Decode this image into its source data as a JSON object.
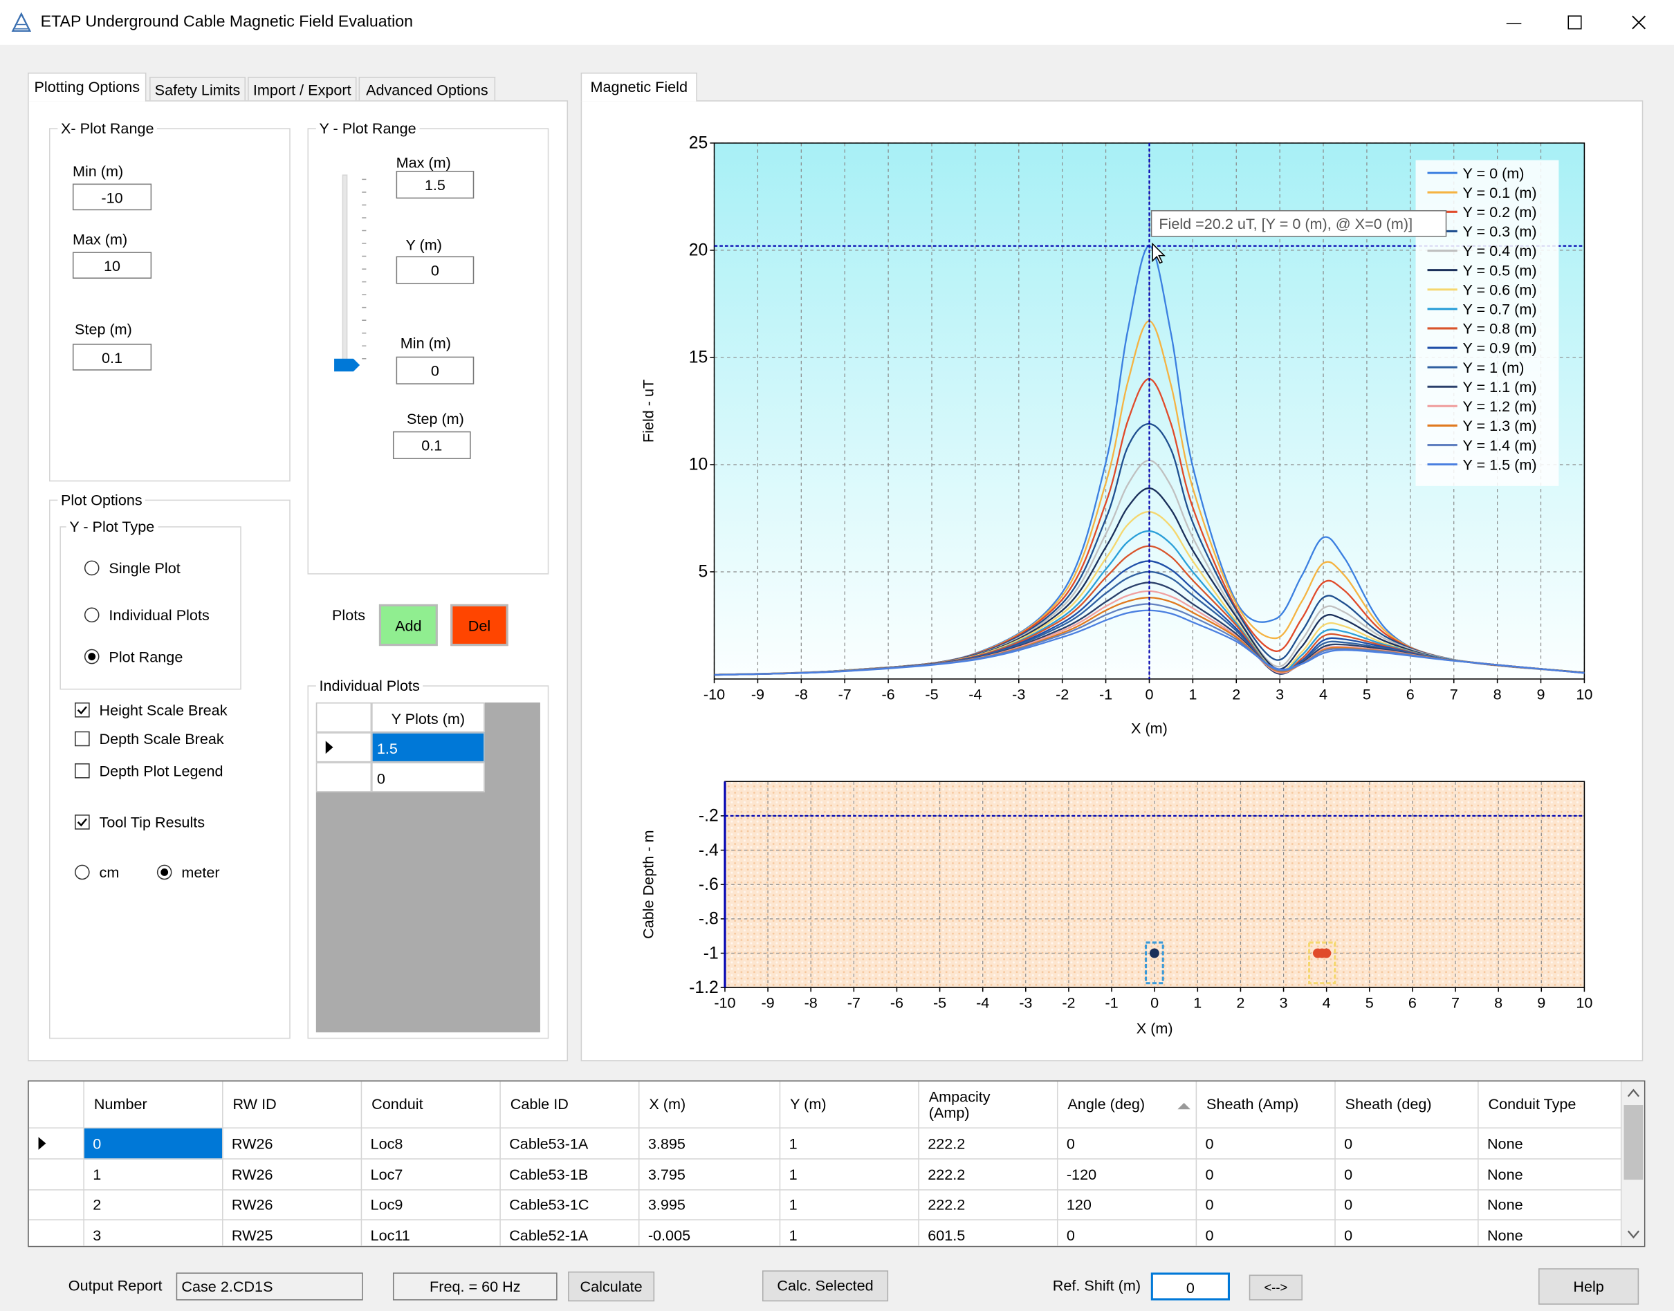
{
  "window": {
    "title": "ETAP Underground Cable Magnetic Field Evaluation"
  },
  "left_tabs": [
    "Plotting Options",
    "Safety Limits",
    "Import / Export",
    "Advanced Options"
  ],
  "x_plot_range": {
    "title": "X- Plot Range",
    "min_label": "Min (m)",
    "min": -10,
    "max_label": "Max (m)",
    "max": 10,
    "step_label": "Step (m)",
    "step": 0.1
  },
  "y_plot_range": {
    "title": "Y - Plot Range",
    "max_label": "Max (m)",
    "max": 1.5,
    "y_label": "Y (m)",
    "y": 0,
    "min_label": "Min (m)",
    "min": 0,
    "step_label": "Step (m)",
    "step": 0.1
  },
  "plot_options": {
    "title": "Plot Options",
    "y_plot_type": {
      "title": "Y - Plot Type",
      "options": [
        "Single Plot",
        "Individual Plots",
        "Plot Range"
      ],
      "selected": 2
    },
    "checkboxes": [
      {
        "label": "Height Scale Break",
        "checked": true
      },
      {
        "label": "Depth Scale Break",
        "checked": false
      },
      {
        "label": "Depth Plot Legend",
        "checked": false
      },
      {
        "label": "Tool Tip Results",
        "checked": true
      }
    ],
    "units": {
      "options": [
        "cm",
        "meter"
      ],
      "selected": 1
    }
  },
  "plots": {
    "label": "Plots",
    "add": "Add",
    "del": "Del"
  },
  "individual_plots": {
    "title": "Individual Plots",
    "header": "Y Plots (m)",
    "rows": [
      1.5,
      0
    ]
  },
  "right_tab": "Magnetic Field",
  "chart_data": [
    {
      "type": "line",
      "y_label": "Field - uT",
      "x_label": "X (m)",
      "x": [
        -10,
        -7,
        -4,
        -2,
        -1,
        -0.5,
        0,
        0.5,
        1,
        2,
        2.9,
        3.5,
        4,
        4.5,
        5.5,
        7,
        10
      ],
      "series": [
        {
          "name": "Y = 0 (m)",
          "color": "#3b7fe0",
          "values": [
            0.2,
            0.4,
            1.19,
            4.04,
            10.1,
            16.2,
            20.2,
            16.1,
            9.9,
            3.6,
            2.8,
            4.8,
            6.6,
            5.6,
            2.2,
            0.9,
            0.3
          ]
        },
        {
          "name": "Y = 0.1 (m)",
          "color": "#f5b342",
          "values": [
            0.2,
            0.4,
            1.17,
            3.88,
            9.14,
            13.8,
            16.7,
            13.7,
            8.9,
            3.5,
            1.9,
            3.6,
            5.4,
            4.8,
            2.1,
            0.9,
            0.3
          ]
        },
        {
          "name": "Y = 0.2 (m)",
          "color": "#e04a2a",
          "values": [
            0.2,
            0.4,
            1.16,
            3.71,
            8.21,
            12.0,
            14.0,
            11.9,
            8.0,
            3.3,
            1.3,
            2.8,
            4.5,
            4.1,
            2.0,
            0.9,
            0.3
          ]
        },
        {
          "name": "Y = 0.3 (m)",
          "color": "#1f4f8f",
          "values": [
            0.2,
            0.4,
            1.14,
            3.53,
            7.47,
            10.8,
            11.9,
            10.7,
            7.3,
            3.2,
            0.9,
            2.2,
            3.8,
            3.5,
            1.9,
            0.9,
            0.3
          ]
        },
        {
          "name": "Y = 0.4 (m)",
          "color": "#c0c0c0",
          "values": [
            0.2,
            0.4,
            1.11,
            3.37,
            6.76,
            9.05,
            10.2,
            9.0,
            6.6,
            3.0,
            0.6,
            1.8,
            3.3,
            3.1,
            1.8,
            0.9,
            0.3
          ]
        },
        {
          "name": "Y = 0.5 (m)",
          "color": "#1a2f5a",
          "values": [
            0.2,
            0.39,
            1.1,
            3.2,
            6.15,
            8.0,
            8.9,
            7.9,
            6.0,
            2.9,
            0.5,
            1.5,
            2.9,
            2.75,
            1.7,
            0.88,
            0.3
          ]
        },
        {
          "name": "Y = 0.6 (m)",
          "color": "#f5d76e",
          "values": [
            0.2,
            0.39,
            1.08,
            3.05,
            5.62,
            7.19,
            7.8,
            7.1,
            5.5,
            2.7,
            0.4,
            1.25,
            2.5,
            2.45,
            1.6,
            0.88,
            0.3
          ]
        },
        {
          "name": "Y = 0.7 (m)",
          "color": "#2a9fd8",
          "values": [
            0.19,
            0.38,
            1.05,
            2.89,
            5.12,
            6.39,
            6.9,
            6.3,
            5.0,
            2.6,
            0.35,
            1.1,
            2.2,
            2.2,
            1.55,
            0.88,
            0.29
          ]
        },
        {
          "name": "Y = 0.8 (m)",
          "color": "#d9542b",
          "values": [
            0.19,
            0.38,
            1.05,
            2.77,
            4.74,
            5.74,
            6.2,
            5.7,
            4.6,
            2.5,
            0.3,
            0.95,
            2.0,
            2.0,
            1.5,
            0.87,
            0.29
          ]
        },
        {
          "name": "Y = 0.9 (m)",
          "color": "#1f4fa8",
          "values": [
            0.19,
            0.38,
            1.02,
            2.62,
            4.33,
            5.15,
            5.5,
            5.1,
            4.2,
            2.35,
            0.3,
            0.85,
            1.8,
            1.85,
            1.45,
            0.87,
            0.29
          ]
        },
        {
          "name": "Y = 1 (m)",
          "color": "#3060a0",
          "values": [
            0.19,
            0.38,
            1.0,
            2.5,
            4.0,
            4.71,
            5.0,
            4.7,
            3.9,
            2.25,
            0.3,
            0.8,
            1.65,
            1.7,
            1.4,
            0.87,
            0.29
          ]
        },
        {
          "name": "Y = 1.1 (m)",
          "color": "#2a3f6a",
          "values": [
            0.19,
            0.37,
            0.97,
            2.35,
            3.6,
            4.23,
            4.5,
            4.2,
            3.5,
            2.1,
            0.3,
            0.75,
            1.5,
            1.6,
            1.35,
            0.86,
            0.29
          ]
        },
        {
          "name": "Y = 1.2 (m)",
          "color": "#f0a0a0",
          "values": [
            0.19,
            0.37,
            0.95,
            2.25,
            3.39,
            3.89,
            4.1,
            3.85,
            3.3,
            2.0,
            0.35,
            0.7,
            1.4,
            1.5,
            1.3,
            0.86,
            0.28
          ]
        },
        {
          "name": "Y = 1.3 (m)",
          "color": "#e07a20",
          "values": [
            0.19,
            0.37,
            0.94,
            2.15,
            3.2,
            3.62,
            3.8,
            3.6,
            3.1,
            1.95,
            0.4,
            0.7,
            1.35,
            1.45,
            1.27,
            0.86,
            0.28
          ]
        },
        {
          "name": "Y = 1.4 (m)",
          "color": "#6080c0",
          "values": [
            0.19,
            0.37,
            0.93,
            2.07,
            2.99,
            3.35,
            3.5,
            3.3,
            2.9,
            1.85,
            0.45,
            0.7,
            1.3,
            1.4,
            1.25,
            0.85,
            0.28
          ]
        },
        {
          "name": "Y = 1.5 (m)",
          "color": "#4a7fe0",
          "values": [
            0.19,
            0.36,
            0.9,
            1.95,
            2.74,
            3.08,
            3.2,
            3.05,
            2.65,
            1.75,
            0.5,
            0.7,
            1.2,
            1.35,
            1.2,
            0.85,
            0.28
          ]
        }
      ],
      "xlim": [
        -10,
        10
      ],
      "xticks": [
        -10,
        -9,
        -8,
        -7,
        -6,
        -5,
        -4,
        -3,
        -2,
        -1,
        0,
        1,
        2,
        3,
        4,
        5,
        6,
        7,
        8,
        9,
        10
      ],
      "ylim": [
        0,
        25
      ],
      "yticks": [
        5,
        10,
        15,
        20,
        25
      ],
      "grid": true,
      "legend": "top-right",
      "crosshair": {
        "x": 0,
        "y": 20.2
      },
      "tooltip": "Field =20.2 uT, [Y = 0 (m),  @ X=0 (m)]"
    },
    {
      "type": "scatter",
      "y_label": "Cable Depth - m",
      "x_label": "X (m)",
      "series": [
        {
          "color": "#1a2f5a",
          "x": [
            -0.005
          ],
          "values": [
            -1
          ]
        },
        {
          "color": "#e04a2a",
          "x": [
            3.795,
            3.895,
            3.995
          ],
          "values": [
            -1,
            -1,
            -1
          ]
        }
      ],
      "xlim": [
        -10,
        10
      ],
      "xticks": [
        -10,
        -9,
        -8,
        -7,
        -6,
        -5,
        -4,
        -3,
        -2,
        -1,
        0,
        1,
        2,
        3,
        4,
        5,
        6,
        7,
        8,
        9,
        10
      ],
      "ylim": [
        -1.2,
        0
      ],
      "yticks": [
        {
          "value": -0.2,
          "label": "-.2"
        },
        {
          "value": -0.4,
          "label": "-.4"
        },
        {
          "value": -0.6,
          "label": "-.6"
        },
        {
          "value": -0.8,
          "label": "-.8"
        },
        -1,
        -1.2
      ],
      "grid": true,
      "hline": -0.2
    }
  ],
  "table": {
    "columns": [
      "Number",
      "RW ID",
      "Conduit",
      "Cable ID",
      "X (m)",
      "Y (m)",
      "Ampacity\n(Amp)",
      "Angle (deg)",
      "Sheath (Amp)",
      "Sheath (deg)",
      "Conduit Type"
    ],
    "rows": [
      [
        0,
        "RW26",
        "Loc8",
        "Cable53-1A",
        3.895,
        1,
        222.2,
        0,
        0,
        0,
        "None"
      ],
      [
        1,
        "RW26",
        "Loc7",
        "Cable53-1B",
        3.795,
        1,
        222.2,
        -120,
        0,
        0,
        "None"
      ],
      [
        2,
        "RW26",
        "Loc9",
        "Cable53-1C",
        3.995,
        1,
        222.2,
        120,
        0,
        0,
        "None"
      ],
      [
        3,
        "RW25",
        "Loc11",
        "Cable52-1A",
        -0.005,
        1,
        601.5,
        0,
        0,
        0,
        "None"
      ]
    ]
  },
  "bottom": {
    "output_report_label": "Output Report",
    "output_report": "Case 2.CD1S",
    "freq": "Freq. = 60 Hz",
    "calculate": "Calculate",
    "calc_selected": "Calc. Selected",
    "ref_shift_label": "Ref. Shift (m)",
    "ref_shift": 0,
    "swap": "<-->",
    "help": "Help"
  }
}
